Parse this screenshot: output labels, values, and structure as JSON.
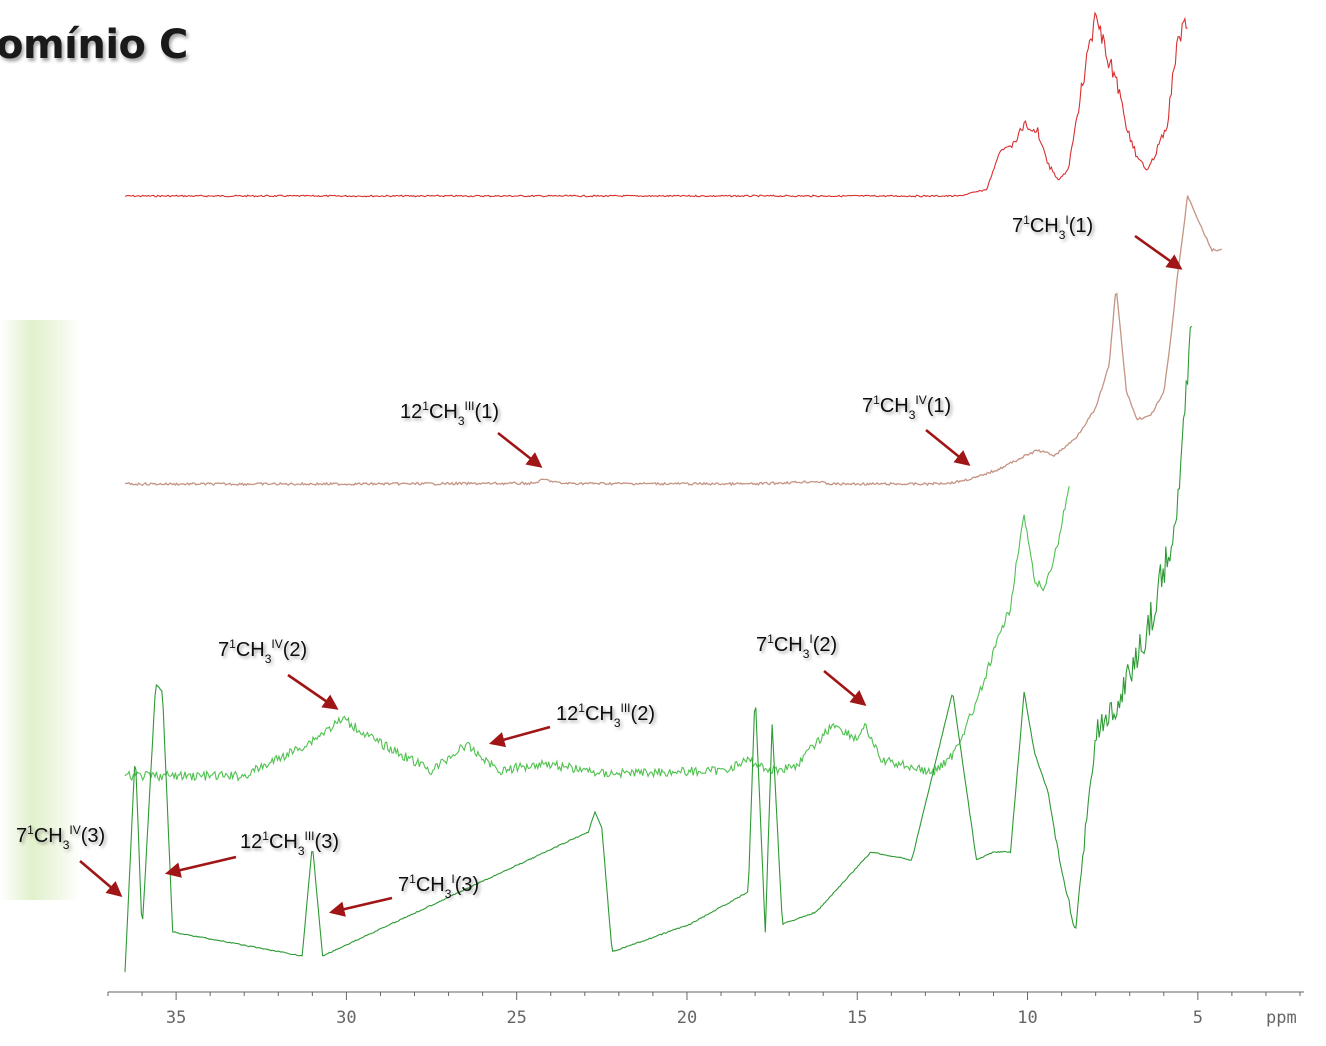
{
  "title": "omínio C",
  "chart_data": {
    "type": "line",
    "title": "omínio C",
    "xlabel": "ppm",
    "x_reversed": true,
    "xlim": [
      37,
      2
    ],
    "xticks": [
      35,
      30,
      25,
      20,
      15,
      10,
      5
    ],
    "grid": false,
    "legend": "none",
    "series": [
      {
        "color": "#d93030",
        "x": [
          36.5,
          30,
          20,
          12,
          11.2,
          10.8,
          10.4,
          10.1,
          9.7,
          9.4,
          9.1,
          8.8,
          8.4,
          8.0,
          7.7,
          7.4,
          7.1,
          6.8,
          6.5,
          6.2,
          5.9,
          5.6,
          5.3
        ],
        "y": [
          0,
          0,
          0,
          0,
          0.05,
          0.35,
          0.4,
          0.55,
          0.5,
          0.25,
          0.12,
          0.2,
          0.85,
          1.4,
          1.1,
          0.9,
          0.55,
          0.3,
          0.2,
          0.35,
          0.55,
          1.2,
          1.35
        ]
      },
      {
        "color": "#c49484",
        "x": [
          36.5,
          30,
          24.5,
          24.2,
          23.7,
          18,
          16.2,
          15.8,
          13,
          12.2,
          11.5,
          10.8,
          10.2,
          9.7,
          9.2,
          8.6,
          8.0,
          7.6,
          7.4,
          7.1,
          6.8,
          6.4,
          6.0,
          5.8,
          5.6,
          5.4,
          5.3,
          4.6,
          4.3
        ],
        "y": [
          0,
          0,
          0.005,
          0.035,
          0.005,
          0,
          0.02,
          0,
          0,
          0.01,
          0.05,
          0.12,
          0.2,
          0.26,
          0.22,
          0.35,
          0.58,
          0.92,
          1.52,
          0.72,
          0.5,
          0.52,
          0.7,
          1.1,
          1.6,
          2.0,
          2.22,
          1.8,
          1.8
        ]
      },
      {
        "color": "#4fc14f",
        "x": [
          36.5,
          33,
          31.2,
          30.1,
          29.2,
          27.5,
          26.5,
          25.5,
          24.2,
          22.5,
          19,
          18.2,
          17.5,
          16.8,
          15.7,
          15.0,
          14.8,
          14.3,
          13.5,
          12.8,
          12.2,
          11.5,
          10.8,
          10.5,
          10.3,
          10.1,
          9.8,
          9.5,
          9.1,
          8.8
        ],
        "y": [
          0,
          0,
          0.12,
          0.22,
          0.14,
          0.02,
          0.12,
          0.02,
          0.05,
          0.01,
          0.02,
          0.06,
          0.02,
          0.04,
          0.2,
          0.14,
          0.2,
          0.06,
          0.04,
          0.01,
          0.08,
          0.28,
          0.55,
          0.65,
          0.85,
          1.0,
          0.75,
          0.72,
          0.9,
          1.1
        ]
      },
      {
        "color": "#2e9a34",
        "x": [
          36.5,
          36.2,
          36.0,
          35.6,
          35.4,
          35.1,
          31.3,
          31.0,
          30.7,
          22.9,
          22.7,
          22.5,
          22.2,
          19.9,
          18.2,
          18.0,
          17.7,
          17.5,
          17.2,
          16.2,
          14.6,
          13.4,
          12.2,
          11.5,
          11.0,
          10.5,
          10.1,
          9.8,
          9.4,
          9.1,
          8.6,
          8.0,
          7.5,
          7.0,
          6.5,
          6.0,
          5.6,
          5.2
        ],
        "y": [
          0,
          0.55,
          0.1,
          0.72,
          0.7,
          0.1,
          0.04,
          0.32,
          0.04,
          0.35,
          0.4,
          0.36,
          0.05,
          0.12,
          0.2,
          0.7,
          0.1,
          0.62,
          0.12,
          0.15,
          0.3,
          0.28,
          0.7,
          0.28,
          0.3,
          0.3,
          0.7,
          0.55,
          0.45,
          0.3,
          0.1,
          0.6,
          0.65,
          0.75,
          0.85,
          1.0,
          1.15,
          1.6
        ]
      }
    ],
    "annotations": [
      {
        "base": "7",
        "sup1": "1",
        "mid": "CH",
        "sub": "3",
        "sup2": "I",
        "tail": "(1)",
        "x": 5.7
      },
      {
        "base": "12",
        "sup1": "1",
        "mid": "CH",
        "sub": "3",
        "sup2": "III",
        "tail": "(1)",
        "x": 24.2
      },
      {
        "base": "7",
        "sup1": "1",
        "mid": "CH",
        "sub": "3",
        "sup2": "IV",
        "tail": "(1)",
        "x": 11.8
      },
      {
        "base": "7",
        "sup1": "1",
        "mid": "CH",
        "sub": "3",
        "sup2": "IV",
        "tail": "(2)",
        "x": 30.2
      },
      {
        "base": "12",
        "sup1": "1",
        "mid": "CH",
        "sub": "3",
        "sup2": "III",
        "tail": "(2)",
        "x": 26.4
      },
      {
        "base": "7",
        "sup1": "1",
        "mid": "CH",
        "sub": "3",
        "sup2": "I",
        "tail": "(2)",
        "x": 14.8
      },
      {
        "base": "7",
        "sup1": "1",
        "mid": "CH",
        "sub": "3",
        "sup2": "IV",
        "tail": "(3)",
        "x": 36.2
      },
      {
        "base": "12",
        "sup1": "1",
        "mid": "CH",
        "sub": "3",
        "sup2": "III",
        "tail": "(3)",
        "x": 35.4
      },
      {
        "base": "7",
        "sup1": "1",
        "mid": "CH",
        "sub": "3",
        "sup2": "I",
        "tail": "(3)",
        "x": 31.0
      }
    ]
  }
}
